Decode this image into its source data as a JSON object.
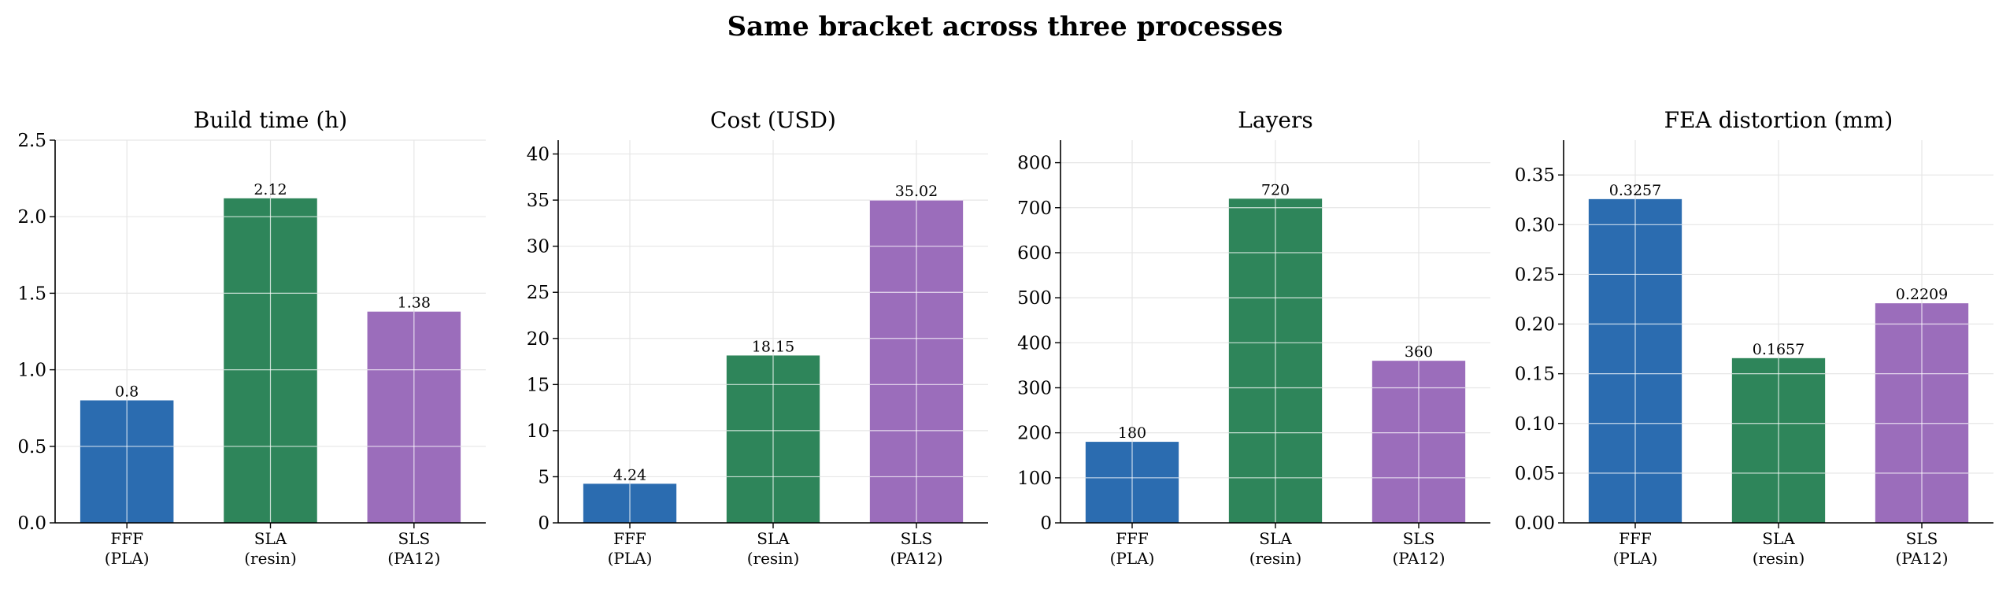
{
  "title": "Same bracket across three processes",
  "colors": {
    "FFF": "#2b6cb0",
    "SLA": "#2e855a",
    "SLS": "#9b6dbb",
    "grid": "#e6e6e6",
    "axis": "#000000"
  },
  "chart_data": [
    {
      "type": "bar",
      "title": "Build time (h)",
      "categories": [
        "FFF\n(PLA)",
        "SLA\n(resin)",
        "SLS\n(PA12)"
      ],
      "values": [
        0.8,
        2.12,
        1.38
      ],
      "value_labels": [
        "0.8",
        "2.12",
        "1.38"
      ],
      "ylim": [
        0,
        2.5
      ],
      "yticks": [
        0.0,
        0.5,
        1.0,
        1.5,
        2.0,
        2.5
      ],
      "ytick_labels": [
        "0.0",
        "0.5",
        "1.0",
        "1.5",
        "2.0",
        "2.5"
      ],
      "grid": true
    },
    {
      "type": "bar",
      "title": "Cost (USD)",
      "categories": [
        "FFF\n(PLA)",
        "SLA\n(resin)",
        "SLS\n(PA12)"
      ],
      "values": [
        4.24,
        18.15,
        35.02
      ],
      "value_labels": [
        "4.24",
        "18.15",
        "35.02"
      ],
      "ylim": [
        0,
        41.5
      ],
      "yticks": [
        0,
        5,
        10,
        15,
        20,
        25,
        30,
        35,
        40
      ],
      "ytick_labels": [
        "0",
        "5",
        "10",
        "15",
        "20",
        "25",
        "30",
        "35",
        "40"
      ],
      "grid": true
    },
    {
      "type": "bar",
      "title": "Layers",
      "categories": [
        "FFF\n(PLA)",
        "SLA\n(resin)",
        "SLS\n(PA12)"
      ],
      "values": [
        180,
        720,
        360
      ],
      "value_labels": [
        "180",
        "720",
        "360"
      ],
      "ylim": [
        0,
        850
      ],
      "yticks": [
        0,
        100,
        200,
        300,
        400,
        500,
        600,
        700,
        800
      ],
      "ytick_labels": [
        "0",
        "100",
        "200",
        "300",
        "400",
        "500",
        "600",
        "700",
        "800"
      ],
      "grid": true
    },
    {
      "type": "bar",
      "title": "FEA distortion (mm)",
      "categories": [
        "FFF\n(PLA)",
        "SLA\n(resin)",
        "SLS\n(PA12)"
      ],
      "values": [
        0.3257,
        0.1657,
        0.2209
      ],
      "value_labels": [
        "0.3257",
        "0.1657",
        "0.2209"
      ],
      "ylim": [
        0,
        0.385
      ],
      "yticks": [
        0.0,
        0.05,
        0.1,
        0.15,
        0.2,
        0.25,
        0.3,
        0.35
      ],
      "ytick_labels": [
        "0.00",
        "0.05",
        "0.10",
        "0.15",
        "0.20",
        "0.25",
        "0.30",
        "0.35"
      ],
      "grid": true
    }
  ]
}
